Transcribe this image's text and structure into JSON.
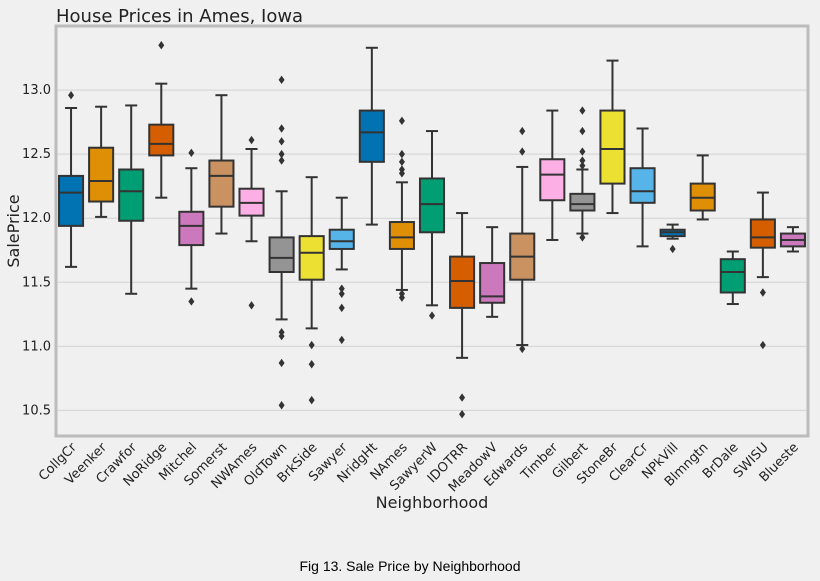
{
  "caption": "Fig 13. Sale Price by Neighborhood",
  "chart_data": {
    "type": "box",
    "title": "House Prices in Ames, Iowa",
    "xlabel": "Neighborhood",
    "ylabel": "SalePrice",
    "ylim": [
      10.3,
      13.5
    ],
    "yticks": [
      "10.5",
      "11.0",
      "11.5",
      "12.0",
      "12.5",
      "13.0"
    ],
    "grid": "horizontal",
    "boxes": [
      {
        "name": "CollgCr",
        "color": "#0173b2",
        "whisker_low": 11.62,
        "q1": 11.94,
        "median": 12.2,
        "q3": 12.33,
        "whisker_high": 12.86,
        "outliers": [
          12.96
        ]
      },
      {
        "name": "Veenker",
        "color": "#de8f05",
        "whisker_low": 12.01,
        "q1": 12.13,
        "median": 12.29,
        "q3": 12.55,
        "whisker_high": 12.87,
        "outliers": []
      },
      {
        "name": "Crawfor",
        "color": "#029e73",
        "whisker_low": 11.41,
        "q1": 11.98,
        "median": 12.21,
        "q3": 12.38,
        "whisker_high": 12.88,
        "outliers": []
      },
      {
        "name": "NoRidge",
        "color": "#d55e00",
        "whisker_low": 12.16,
        "q1": 12.49,
        "median": 12.58,
        "q3": 12.73,
        "whisker_high": 13.05,
        "outliers": [
          13.35
        ]
      },
      {
        "name": "Mitchel",
        "color": "#cc78bc",
        "whisker_low": 11.45,
        "q1": 11.79,
        "median": 11.94,
        "q3": 12.05,
        "whisker_high": 12.39,
        "outliers": [
          11.35,
          12.51
        ]
      },
      {
        "name": "Somerst",
        "color": "#ca9161",
        "whisker_low": 11.88,
        "q1": 12.09,
        "median": 12.33,
        "q3": 12.45,
        "whisker_high": 12.96,
        "outliers": []
      },
      {
        "name": "NWAmes",
        "color": "#fbafe4",
        "whisker_low": 11.82,
        "q1": 12.02,
        "median": 12.12,
        "q3": 12.23,
        "whisker_high": 12.54,
        "outliers": [
          11.32,
          12.61
        ]
      },
      {
        "name": "OldTown",
        "color": "#949494",
        "whisker_low": 11.21,
        "q1": 11.58,
        "median": 11.69,
        "q3": 11.85,
        "whisker_high": 12.21,
        "outliers": [
          10.54,
          10.87,
          11.08,
          11.11,
          12.45,
          12.5,
          12.6,
          12.7,
          13.08
        ]
      },
      {
        "name": "BrkSide",
        "color": "#ece133",
        "whisker_low": 11.14,
        "q1": 11.52,
        "median": 11.73,
        "q3": 11.86,
        "whisker_high": 12.32,
        "outliers": [
          10.58,
          10.86,
          11.01
        ]
      },
      {
        "name": "Sawyer",
        "color": "#56b4e9",
        "whisker_low": 11.6,
        "q1": 11.76,
        "median": 11.82,
        "q3": 11.91,
        "whisker_high": 12.16,
        "outliers": [
          11.05,
          11.3,
          11.41,
          11.45
        ]
      },
      {
        "name": "NridgHt",
        "color": "#0173b2",
        "whisker_low": 11.95,
        "q1": 12.44,
        "median": 12.67,
        "q3": 12.84,
        "whisker_high": 13.33,
        "outliers": []
      },
      {
        "name": "NAmes",
        "color": "#de8f05",
        "whisker_low": 11.44,
        "q1": 11.76,
        "median": 11.85,
        "q3": 11.97,
        "whisker_high": 12.28,
        "outliers": [
          11.38,
          11.41,
          12.35,
          12.38,
          12.44,
          12.5,
          12.76
        ]
      },
      {
        "name": "SawyerW",
        "color": "#029e73",
        "whisker_low": 11.32,
        "q1": 11.89,
        "median": 12.11,
        "q3": 12.31,
        "whisker_high": 12.68,
        "outliers": [
          11.24
        ]
      },
      {
        "name": "IDOTRR",
        "color": "#d55e00",
        "whisker_low": 10.91,
        "q1": 11.3,
        "median": 11.51,
        "q3": 11.7,
        "whisker_high": 12.04,
        "outliers": [
          10.47,
          10.6
        ]
      },
      {
        "name": "MeadowV",
        "color": "#cc78bc",
        "whisker_low": 11.23,
        "q1": 11.34,
        "median": 11.39,
        "q3": 11.65,
        "whisker_high": 11.93,
        "outliers": []
      },
      {
        "name": "Edwards",
        "color": "#ca9161",
        "whisker_low": 11.01,
        "q1": 11.52,
        "median": 11.7,
        "q3": 11.88,
        "whisker_high": 12.4,
        "outliers": [
          10.98,
          12.52,
          12.68
        ]
      },
      {
        "name": "Timber",
        "color": "#fbafe4",
        "whisker_low": 11.83,
        "q1": 12.14,
        "median": 12.34,
        "q3": 12.46,
        "whisker_high": 12.84,
        "outliers": []
      },
      {
        "name": "Gilbert",
        "color": "#949494",
        "whisker_low": 11.88,
        "q1": 12.06,
        "median": 12.11,
        "q3": 12.19,
        "whisker_high": 12.38,
        "outliers": [
          11.85,
          12.41,
          12.45,
          12.52,
          12.68,
          12.84
        ]
      },
      {
        "name": "StoneBr",
        "color": "#ece133",
        "whisker_low": 12.04,
        "q1": 12.27,
        "median": 12.54,
        "q3": 12.84,
        "whisker_high": 13.23,
        "outliers": []
      },
      {
        "name": "ClearCr",
        "color": "#56b4e9",
        "whisker_low": 11.78,
        "q1": 12.12,
        "median": 12.21,
        "q3": 12.39,
        "whisker_high": 12.7,
        "outliers": []
      },
      {
        "name": "NPkVill",
        "color": "#0173b2",
        "whisker_low": 11.84,
        "q1": 11.86,
        "median": 11.89,
        "q3": 11.91,
        "whisker_high": 11.95,
        "outliers": [
          11.76
        ]
      },
      {
        "name": "Blmngtn",
        "color": "#de8f05",
        "whisker_low": 11.99,
        "q1": 12.06,
        "median": 12.16,
        "q3": 12.27,
        "whisker_high": 12.49,
        "outliers": []
      },
      {
        "name": "BrDale",
        "color": "#029e73",
        "whisker_low": 11.33,
        "q1": 11.42,
        "median": 11.58,
        "q3": 11.68,
        "whisker_high": 11.74,
        "outliers": []
      },
      {
        "name": "SWISU",
        "color": "#d55e00",
        "whisker_low": 11.54,
        "q1": 11.77,
        "median": 11.85,
        "q3": 11.99,
        "whisker_high": 12.2,
        "outliers": [
          11.01,
          11.42
        ]
      },
      {
        "name": "Blueste",
        "color": "#cc78bc",
        "whisker_low": 11.74,
        "q1": 11.78,
        "median": 11.83,
        "q3": 11.88,
        "whisker_high": 11.93,
        "outliers": []
      }
    ]
  }
}
